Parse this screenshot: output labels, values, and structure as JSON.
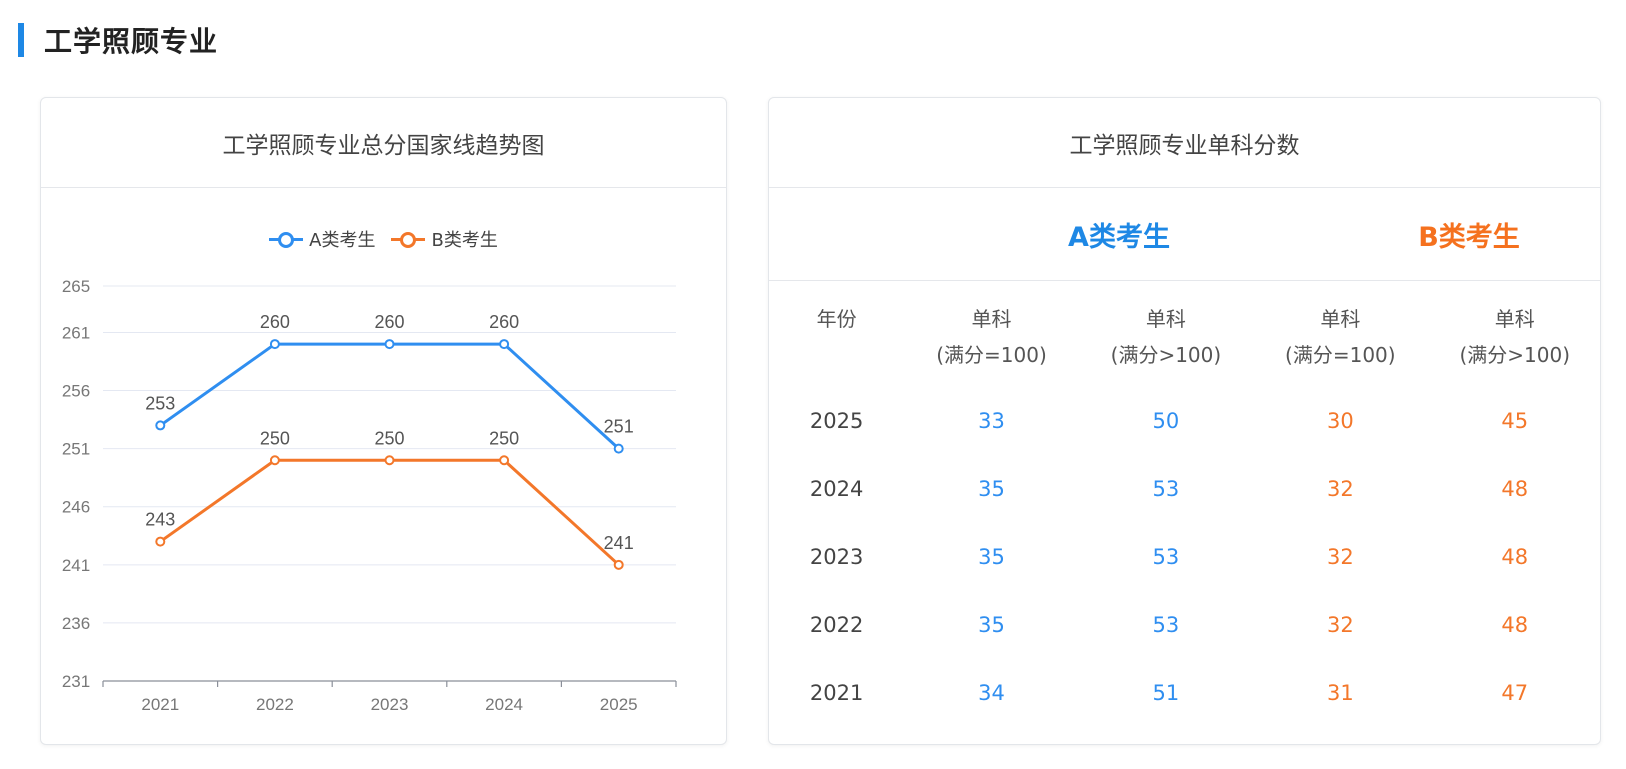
{
  "section": {
    "title": "工学照顾专业"
  },
  "chart_card": {
    "title": "工学照顾专业总分国家线趋势图"
  },
  "chart_data": {
    "type": "line",
    "title": "工学照顾专业总分国家线趋势图",
    "categories": [
      "2021",
      "2022",
      "2023",
      "2024",
      "2025"
    ],
    "series": [
      {
        "name": "A类考生",
        "color": "#2f8ef0",
        "values": [
          253,
          260,
          260,
          260,
          251
        ]
      },
      {
        "name": "B类考生",
        "color": "#f3772a",
        "values": [
          243,
          250,
          250,
          250,
          241
        ]
      }
    ],
    "yticks": [
      231,
      236,
      241,
      246,
      251,
      256,
      261,
      265
    ],
    "ylim": [
      231,
      265
    ],
    "grid": true,
    "legend": "top-center"
  },
  "table_card": {
    "title": "工学照顾专业单科分数",
    "category_a": "A类考生",
    "category_b": "B类考生",
    "headers": {
      "year": "年份",
      "col1_top": "单科",
      "col1_bottom": "(满分=100)",
      "col2_top": "单科",
      "col2_bottom": "(满分>100)",
      "col3_top": "单科",
      "col3_bottom": "(满分=100)",
      "col4_top": "单科",
      "col4_bottom": "(满分>100)"
    },
    "rows": [
      {
        "year": "2025",
        "a100": "33",
        "aover": "50",
        "b100": "30",
        "bover": "45"
      },
      {
        "year": "2024",
        "a100": "35",
        "aover": "53",
        "b100": "32",
        "bover": "48"
      },
      {
        "year": "2023",
        "a100": "35",
        "aover": "53",
        "b100": "32",
        "bover": "48"
      },
      {
        "year": "2022",
        "a100": "35",
        "aover": "53",
        "b100": "32",
        "bover": "48"
      },
      {
        "year": "2021",
        "a100": "34",
        "aover": "51",
        "b100": "31",
        "bover": "47"
      }
    ]
  },
  "colors": {
    "accent": "#1e88e5",
    "series_a": "#2f8ef0",
    "series_b": "#f3772a"
  }
}
